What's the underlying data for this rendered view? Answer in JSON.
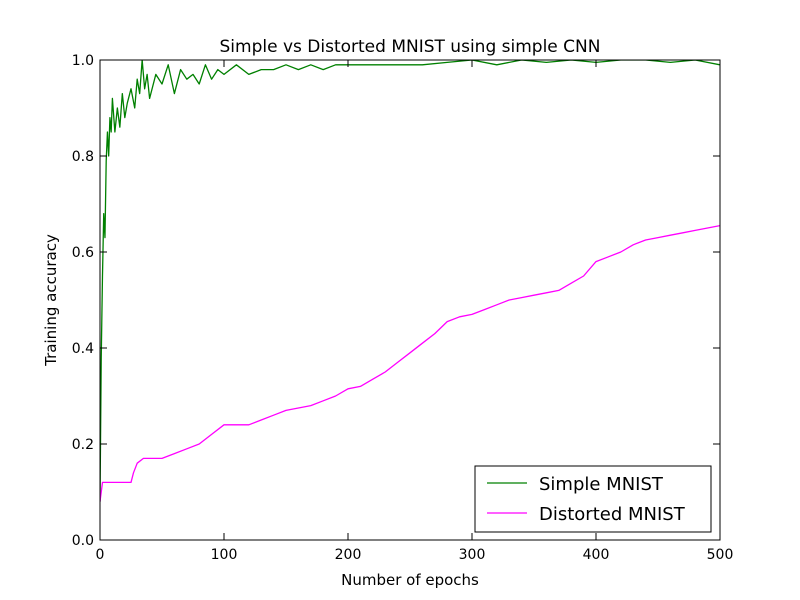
{
  "chart_data": {
    "type": "line",
    "title": "Simple vs Distorted MNIST using simple CNN",
    "xlabel": "Number of epochs",
    "ylabel": "Training accuracy",
    "xlim": [
      0,
      500
    ],
    "ylim": [
      0.0,
      1.0
    ],
    "xticks": [
      0,
      100,
      200,
      300,
      400,
      500
    ],
    "xtick_labels": [
      "0",
      "100",
      "200",
      "300",
      "400",
      "500"
    ],
    "yticks": [
      0.0,
      0.2,
      0.4,
      0.6,
      0.8,
      1.0
    ],
    "ytick_labels": [
      "0.0",
      "0.2",
      "0.4",
      "0.6",
      "0.8",
      "1.0"
    ],
    "grid": false,
    "legend_position": "lower-right",
    "series": [
      {
        "name": "Simple MNIST",
        "color": "#008000",
        "x": [
          0,
          1,
          2,
          3,
          4,
          5,
          6,
          7,
          8,
          9,
          10,
          12,
          14,
          16,
          18,
          20,
          22,
          25,
          28,
          30,
          32,
          34,
          36,
          38,
          40,
          45,
          50,
          55,
          60,
          65,
          70,
          75,
          80,
          85,
          90,
          95,
          100,
          110,
          120,
          130,
          140,
          150,
          160,
          170,
          180,
          190,
          200,
          220,
          240,
          260,
          280,
          300,
          320,
          340,
          360,
          380,
          400,
          420,
          440,
          460,
          480,
          500
        ],
        "y": [
          0.08,
          0.38,
          0.55,
          0.68,
          0.63,
          0.79,
          0.85,
          0.8,
          0.88,
          0.85,
          0.92,
          0.85,
          0.9,
          0.86,
          0.93,
          0.88,
          0.91,
          0.94,
          0.9,
          0.96,
          0.93,
          1.0,
          0.94,
          0.97,
          0.92,
          0.97,
          0.95,
          0.99,
          0.93,
          0.98,
          0.96,
          0.97,
          0.95,
          0.99,
          0.96,
          0.98,
          0.97,
          0.99,
          0.97,
          0.98,
          0.98,
          0.99,
          0.98,
          0.99,
          0.98,
          0.99,
          0.99,
          0.99,
          0.99,
          0.99,
          0.995,
          1.0,
          0.99,
          1.0,
          0.995,
          1.0,
          0.995,
          1.0,
          1.0,
          0.995,
          1.0,
          0.99
        ]
      },
      {
        "name": "Distorted MNIST",
        "color": "#ff00ff",
        "x": [
          0,
          1,
          2,
          3,
          5,
          10,
          15,
          20,
          25,
          27,
          30,
          35,
          40,
          45,
          50,
          55,
          60,
          70,
          80,
          90,
          100,
          110,
          120,
          130,
          140,
          150,
          160,
          170,
          180,
          190,
          200,
          210,
          220,
          230,
          240,
          250,
          260,
          270,
          280,
          290,
          300,
          310,
          320,
          330,
          340,
          350,
          360,
          370,
          380,
          390,
          400,
          410,
          420,
          430,
          440,
          450,
          460,
          470,
          480,
          490,
          500
        ],
        "y": [
          0.08,
          0.1,
          0.12,
          0.12,
          0.12,
          0.12,
          0.12,
          0.12,
          0.12,
          0.14,
          0.16,
          0.17,
          0.17,
          0.17,
          0.17,
          0.175,
          0.18,
          0.19,
          0.2,
          0.22,
          0.24,
          0.24,
          0.24,
          0.25,
          0.26,
          0.27,
          0.275,
          0.28,
          0.29,
          0.3,
          0.315,
          0.32,
          0.335,
          0.35,
          0.37,
          0.39,
          0.41,
          0.43,
          0.455,
          0.465,
          0.47,
          0.48,
          0.49,
          0.5,
          0.505,
          0.51,
          0.515,
          0.52,
          0.535,
          0.55,
          0.58,
          0.59,
          0.6,
          0.615,
          0.625,
          0.63,
          0.635,
          0.64,
          0.645,
          0.65,
          0.655
        ]
      }
    ]
  }
}
